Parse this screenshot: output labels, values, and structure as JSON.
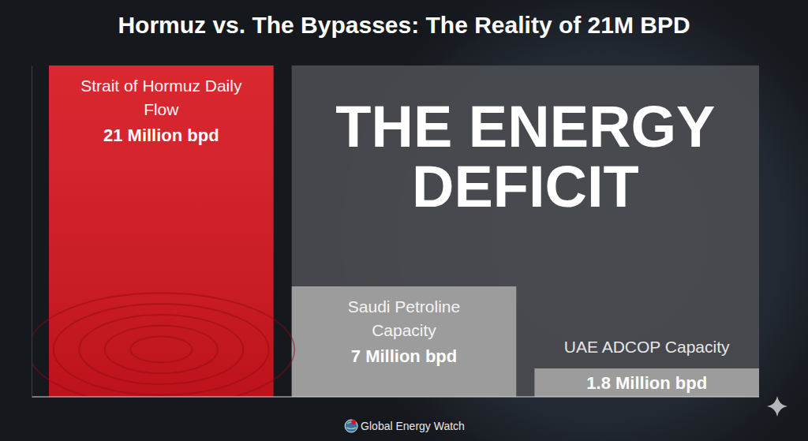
{
  "chart_data": {
    "type": "bar",
    "title": "Hormuz vs. The Bypasses: The Reality of 21M BPD",
    "categories": [
      "Strait of Hormuz Daily Flow",
      "Saudi Petroline Capacity",
      "UAE ADCOP Capacity"
    ],
    "values": [
      21,
      7,
      1.8
    ],
    "value_labels": [
      "21 Million bpd",
      "7 Million bpd",
      "1.8 Million bpd"
    ],
    "colors": [
      "#d7151f",
      "#9c9c9c",
      "#9c9c9c"
    ],
    "ylim": [
      0,
      21
    ],
    "data_labels": true,
    "annotation": "THE ENERGY DEFICIT",
    "source": "Global Energy Watch"
  }
}
